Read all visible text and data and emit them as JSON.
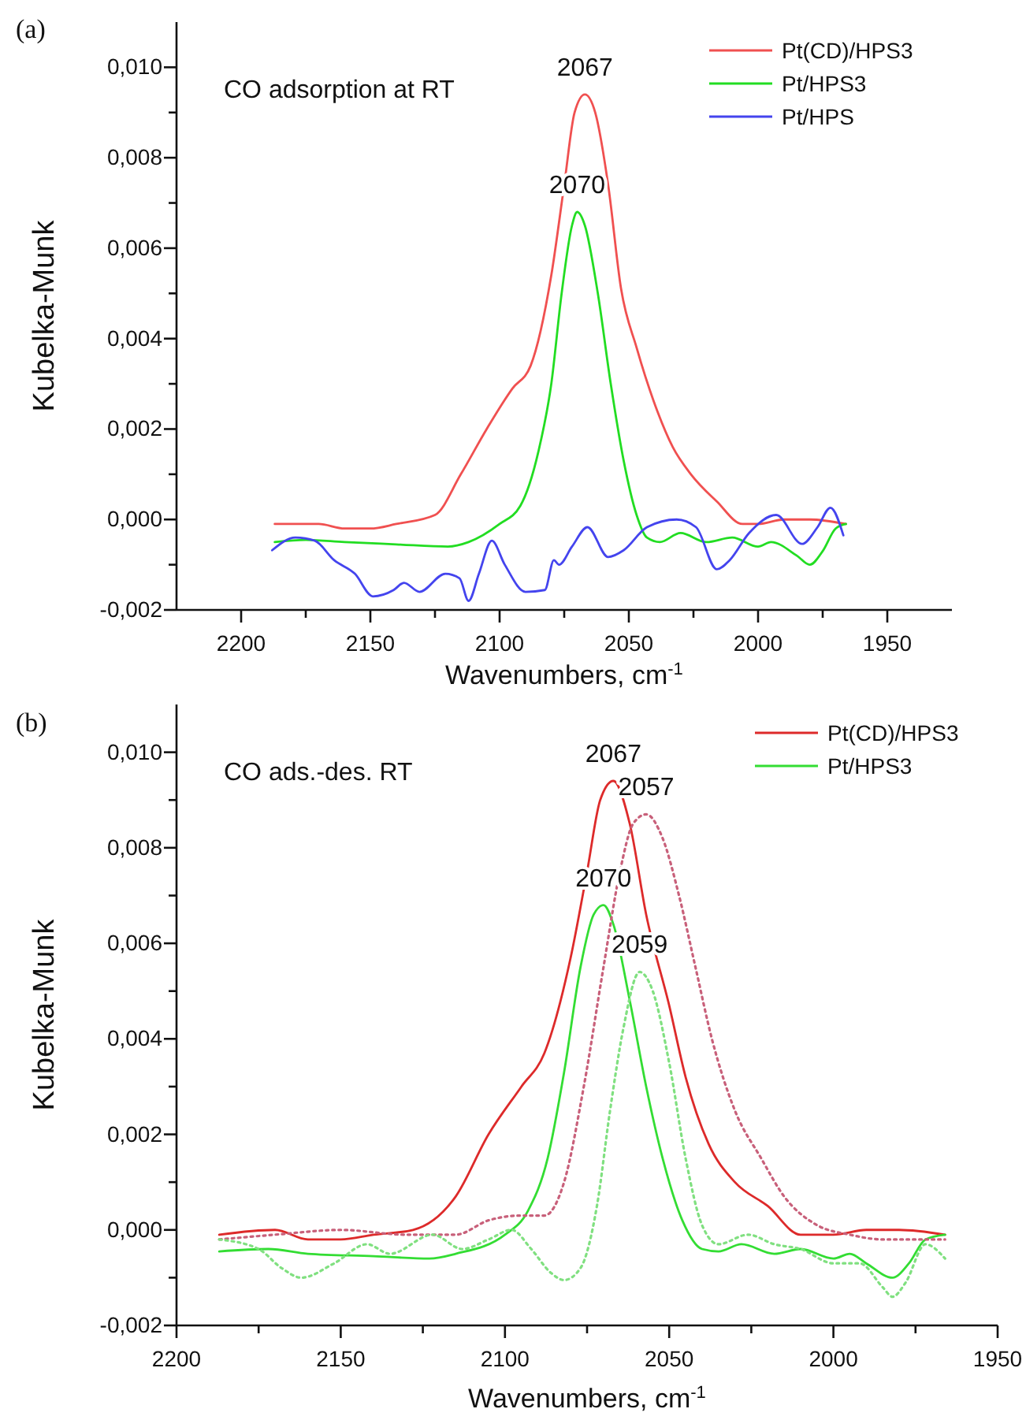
{
  "chart_data": [
    {
      "type": "line",
      "title": "(a)",
      "xlabel": "Wavenumbers, cm$^{-1}$",
      "ylabel": "Kubelka-Munk",
      "legend": "top right",
      "grid": false,
      "marker": "none",
      "line_style": "solid",
      "xlim": [
        2225,
        1925
      ],
      "ylim": [
        -0.002,
        0.011
      ],
      "xticks": [
        2200,
        {
          "value": 2175,
          "label": null
        },
        2150,
        {
          "value": 2125,
          "label": null
        },
        2100,
        {
          "value": 2075,
          "label": null
        },
        2050,
        {
          "value": 2025,
          "label": null
        },
        2000,
        {
          "value": 1975,
          "label": null
        },
        1950
      ],
      "yticks": [
        {
          "value": -0.002,
          "label": "-0,002"
        },
        {
          "value": -0.001,
          "label": null
        },
        {
          "value": 0,
          "label": "0,000"
        },
        {
          "value": 0.001,
          "label": null
        },
        {
          "value": 0.002,
          "label": "0,002"
        },
        {
          "value": 0.003,
          "label": null
        },
        {
          "value": 0.004,
          "label": "0,004"
        },
        {
          "value": 0.005,
          "label": null
        },
        {
          "value": 0.006,
          "label": "0,006"
        },
        {
          "value": 0.007,
          "label": null
        },
        {
          "value": 0.008,
          "label": "0,008"
        },
        {
          "value": 0.009,
          "label": null
        },
        {
          "value": 0.01,
          "label": "0,010"
        }
      ],
      "annotations": [
        "CO adsorption at RT",
        {
          "text": "2067",
          "x": 2067,
          "y": 0.0094
        },
        {
          "text": "2070",
          "x": 2070,
          "y": 0.0068
        }
      ],
      "series": [
        {
          "name": "Pt(CD)/HPS3",
          "color": "#f05050",
          "x": [
            2187,
            2170,
            2160,
            2150,
            2140,
            2125,
            2115,
            2105,
            2095,
            2088,
            2080,
            2075,
            2071,
            2067,
            2063,
            2058,
            2053,
            2047,
            2039,
            2033,
            2026,
            2016,
            2006,
            2000,
            1990,
            1980,
            1966
          ],
          "values": [
            -0.0001,
            -0.0001,
            -0.0002,
            -0.0002,
            -0.0001,
            0.0001,
            0.001,
            0.002,
            0.0029,
            0.0034,
            0.0054,
            0.0074,
            0.009,
            0.0094,
            0.009,
            0.0074,
            0.0051,
            0.0038,
            0.0024,
            0.0016,
            0.001,
            0.0004,
            -0.0001,
            -0.0001,
            0,
            0,
            -0.0001
          ]
        },
        {
          "name": "Pt/HPS3",
          "color": "#22dd22",
          "x": [
            2187,
            2175,
            2160,
            2140,
            2120,
            2112,
            2100,
            2092,
            2085,
            2080,
            2076,
            2072,
            2070,
            2067,
            2062,
            2057,
            2052,
            2047,
            2043,
            2038,
            2030,
            2020,
            2010,
            2000,
            1995,
            1985,
            1980,
            1975,
            1970,
            1966
          ],
          "values": [
            -0.0005,
            -0.00045,
            -0.0005,
            -0.00055,
            -0.0006,
            -0.0005,
            -0.0001,
            0.0003,
            0.0015,
            0.003,
            0.005,
            0.0065,
            0.0068,
            0.0065,
            0.005,
            0.003,
            0.0013,
            0.0001,
            -0.0004,
            -0.0005,
            -0.0003,
            -0.0005,
            -0.0004,
            -0.0006,
            -0.0005,
            -0.0008,
            -0.001,
            -0.0007,
            -0.0002,
            -0.0001
          ]
        },
        {
          "name": "Pt/HPS",
          "color": "#4444ee",
          "x": [
            2188,
            2179,
            2171.5,
            2164,
            2156,
            2149,
            2141,
            2137,
            2131,
            2121,
            2115.5,
            2112,
            2108,
            2103,
            2098,
            2090,
            2082.5,
            2079,
            2077,
            2072,
            2066,
            2058,
            2052,
            2043,
            2031.5,
            2024,
            2016,
            2011,
            2003.5,
            1993,
            1983,
            1977,
            1972,
            1967
          ],
          "values": [
            -0.00068,
            -0.0004,
            -0.00047,
            -0.0009,
            -0.0012,
            -0.0017,
            -0.00156,
            -0.0014,
            -0.0016,
            -0.0012,
            -0.0013,
            -0.0018,
            -0.0012,
            -0.00047,
            -0.001,
            -0.0016,
            -0.00156,
            -0.0009,
            -0.001,
            -0.0006,
            -0.00017,
            -0.00083,
            -0.00068,
            -0.00017,
            0,
            -0.00017,
            -0.0011,
            -0.0009,
            -0.0003,
            0.0001,
            -0.00054,
            -0.00017,
            0.00026,
            -0.00035
          ]
        }
      ]
    },
    {
      "type": "line",
      "title": "(b)",
      "xlabel": "Wavenumbers, cm$^{-1}$",
      "ylabel": "Kubelka-Munk",
      "legend": "top right",
      "grid": false,
      "marker": "none",
      "line_style": "solid",
      "xlim": [
        2200,
        1950
      ],
      "ylim": [
        -0.002,
        0.011
      ],
      "xticks": [
        2200,
        {
          "value": 2175,
          "label": null
        },
        2150,
        {
          "value": 2125,
          "label": null
        },
        2100,
        {
          "value": 2075,
          "label": null
        },
        2050,
        {
          "value": 2025,
          "label": null
        },
        2000,
        {
          "value": 1975,
          "label": null
        },
        1950
      ],
      "yticks": [
        {
          "value": -0.002,
          "label": "-0,002"
        },
        {
          "value": -0.001,
          "label": null
        },
        {
          "value": 0,
          "label": "0,000"
        },
        {
          "value": 0.001,
          "label": null
        },
        {
          "value": 0.002,
          "label": "0,002"
        },
        {
          "value": 0.003,
          "label": null
        },
        {
          "value": 0.004,
          "label": "0,004"
        },
        {
          "value": 0.005,
          "label": null
        },
        {
          "value": 0.006,
          "label": "0,006"
        },
        {
          "value": 0.007,
          "label": null
        },
        {
          "value": 0.008,
          "label": "0,008"
        },
        {
          "value": 0.009,
          "label": null
        },
        {
          "value": 0.01,
          "label": "0,010"
        }
      ],
      "annotations": [
        "CO ads.-des. RT",
        {
          "text": "2067",
          "x": 2067,
          "y": 0.0094
        },
        {
          "text": "2057",
          "x": 2057,
          "y": 0.0087
        },
        {
          "text": "2070",
          "x": 2070,
          "y": 0.0068
        },
        {
          "text": "2059",
          "x": 2059,
          "y": 0.0054
        }
      ],
      "series": [
        {
          "name": "Pt(CD)/HPS3",
          "color": "#dd2a2a",
          "x": [
            2187,
            2170,
            2160,
            2150,
            2140,
            2128,
            2115,
            2105,
            2095,
            2088,
            2080,
            2075,
            2071,
            2067,
            2062,
            2057,
            2050,
            2045,
            2038,
            2030,
            2020,
            2010,
            2000,
            1990,
            1980,
            1966
          ],
          "values": [
            -0.0001,
            0,
            -0.0002,
            -0.0002,
            -0.0001,
            0,
            0.0007,
            0.002,
            0.003,
            0.0037,
            0.0057,
            0.0075,
            0.009,
            0.0094,
            0.0085,
            0.0066,
            0.0047,
            0.0032,
            0.0018,
            0.001,
            0.0005,
            -0.0001,
            -0.0001,
            0,
            0,
            -0.0001
          ]
        },
        {
          "name": "Pt/HPS3",
          "color": "#33dd33",
          "x": [
            2187,
            2172,
            2160,
            2140,
            2123,
            2115,
            2100,
            2093,
            2087,
            2082,
            2077,
            2073,
            2070,
            2067,
            2062,
            2057,
            2052,
            2046,
            2040,
            2035,
            2028,
            2018,
            2010,
            2000,
            1995,
            1990,
            1982,
            1977,
            1972,
            1966
          ],
          "values": [
            -0.00045,
            -0.0004,
            -0.0005,
            -0.00055,
            -0.0006,
            -0.0005,
            -0.0001,
            0.0004,
            0.0015,
            0.0033,
            0.0055,
            0.0066,
            0.0068,
            0.0064,
            0.0048,
            0.003,
            0.0015,
            0.0002,
            -0.0004,
            -0.00045,
            -0.0003,
            -0.0005,
            -0.0004,
            -0.0006,
            -0.0005,
            -0.0007,
            -0.001,
            -0.0007,
            -0.0002,
            -0.0001
          ]
        },
        {
          "color": "#c8607a",
          "line_style": "dotted",
          "x": [
            2187,
            2170,
            2150,
            2130,
            2115,
            2105,
            2095,
            2088,
            2082,
            2076,
            2070,
            2065,
            2061,
            2057,
            2052,
            2047,
            2042,
            2037,
            2030,
            2022,
            2015,
            2005,
            1995,
            1985,
            1975,
            1966
          ],
          "values": [
            -0.0002,
            -0.0001,
            0,
            -0.0001,
            -0.0001,
            0.0002,
            0.0003,
            0.0003,
            0.001,
            0.003,
            0.0055,
            0.0075,
            0.0085,
            0.0087,
            0.0082,
            0.007,
            0.0055,
            0.004,
            0.0025,
            0.0015,
            0.0007,
            0.0001,
            -0.0001,
            -0.0002,
            -0.0002,
            -0.0002
          ]
        },
        {
          "color": "#80e080",
          "line_style": "dotted",
          "x": [
            2187,
            2175,
            2168,
            2162,
            2152,
            2142,
            2135,
            2122,
            2113,
            2105,
            2098,
            2092,
            2086,
            2082,
            2077,
            2072,
            2068,
            2064,
            2059,
            2055,
            2050,
            2045,
            2040,
            2035,
            2026,
            2018,
            2010,
            2000,
            1992,
            1985,
            1982,
            1978,
            1972,
            1966
          ],
          "values": [
            -0.0002,
            -0.0004,
            -0.0008,
            -0.001,
            -0.0007,
            -0.0003,
            -0.0005,
            -0.0001,
            -0.0004,
            -0.0002,
            0,
            -0.0004,
            -0.0009,
            -0.00105,
            -0.0008,
            0.0005,
            0.0025,
            0.0042,
            0.0054,
            0.005,
            0.0035,
            0.0015,
            0.0001,
            -0.0003,
            -0.0001,
            -0.0003,
            -0.0004,
            -0.0007,
            -0.0007,
            -0.0012,
            -0.0014,
            -0.0011,
            -0.0003,
            -0.0006
          ]
        }
      ]
    }
  ]
}
